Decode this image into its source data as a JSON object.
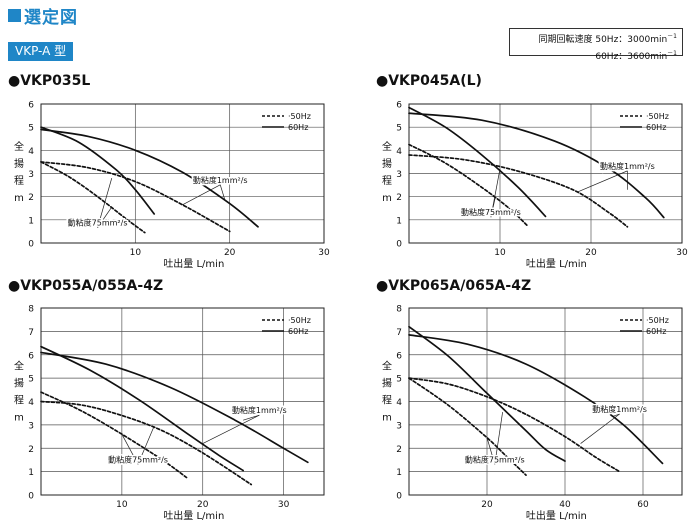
{
  "header": {
    "title": "選定図"
  },
  "section_tag": "VKP-A 型",
  "speed_info": {
    "line1": "同期回転速度 50Hz：3000min",
    "line1_sup": "－1",
    "line2": "60Hz：3600min",
    "line2_sup": "－1"
  },
  "chart_data": [
    {
      "type": "line",
      "title": "●VKP035L",
      "xlabel": "吐出量  L/min",
      "ylabel": [
        "全",
        "揚",
        "程",
        "m"
      ],
      "xlim": [
        0,
        30
      ],
      "ylim": [
        0,
        6
      ],
      "xticks": [
        10,
        20,
        30
      ],
      "yticks": [
        0,
        1,
        2,
        3,
        4,
        5,
        6
      ],
      "grid": true,
      "legend": {
        "position": "top-right",
        "entries": [
          {
            "label": "50Hz",
            "style": "dashed"
          },
          {
            "label": "60Hz",
            "style": "solid"
          }
        ]
      },
      "series": [
        {
          "name": "50Hz",
          "style": "dashed",
          "x": [
            0,
            5,
            10,
            15,
            20
          ],
          "y": [
            3.5,
            3.25,
            2.65,
            1.65,
            0.5
          ]
        },
        {
          "name": "60Hz",
          "style": "solid",
          "x": [
            0,
            5,
            10,
            15,
            20,
            23
          ],
          "y": [
            4.9,
            4.6,
            4.0,
            3.05,
            1.7,
            0.7
          ]
        },
        {
          "name": "50Hz",
          "style": "dashed",
          "x": [
            0,
            3,
            6,
            9,
            11
          ],
          "y": [
            3.5,
            2.85,
            2.0,
            1.05,
            0.45
          ]
        },
        {
          "name": "60Hz",
          "style": "solid",
          "x": [
            0,
            4,
            8,
            10,
            12
          ],
          "y": [
            5.0,
            4.35,
            3.15,
            2.3,
            1.25
          ]
        }
      ],
      "annotations": [
        {
          "text": "動粘度1mm²/s",
          "x": 19,
          "y": 2.6,
          "targets": [
            [
              15,
              1.65
            ],
            [
              19.5,
              1.85
            ]
          ]
        },
        {
          "text": "動粘度75mm²/s",
          "x": 6,
          "y": 0.75,
          "targets": [
            [
              7.5,
              1.55
            ],
            [
              7.5,
              2.8
            ]
          ]
        }
      ]
    },
    {
      "type": "line",
      "title": "●VKP045A(L)",
      "xlabel": "吐出量  L/min",
      "ylabel": [
        "全",
        "揚",
        "程",
        "m"
      ],
      "xlim": [
        0,
        30
      ],
      "ylim": [
        0,
        6
      ],
      "xticks": [
        10,
        20,
        30
      ],
      "yticks": [
        0,
        1,
        2,
        3,
        4,
        5,
        6
      ],
      "grid": true,
      "legend": {
        "position": "top-right",
        "entries": [
          {
            "label": "50Hz",
            "style": "dashed"
          },
          {
            "label": "60Hz",
            "style": "solid"
          }
        ]
      },
      "series": [
        {
          "name": "50Hz",
          "style": "dashed",
          "x": [
            0,
            6,
            12,
            18,
            22,
            24
          ],
          "y": [
            3.8,
            3.6,
            3.1,
            2.3,
            1.3,
            0.7
          ]
        },
        {
          "name": "60Hz",
          "style": "solid",
          "x": [
            0,
            8,
            16,
            22,
            26,
            28
          ],
          "y": [
            5.6,
            5.3,
            4.4,
            3.2,
            1.95,
            1.1
          ]
        },
        {
          "name": "50Hz",
          "style": "dashed",
          "x": [
            0,
            4,
            8,
            11,
            13
          ],
          "y": [
            4.25,
            3.45,
            2.4,
            1.5,
            0.75
          ]
        },
        {
          "name": "60Hz",
          "style": "solid",
          "x": [
            0,
            4,
            8,
            12,
            15
          ],
          "y": [
            5.85,
            5.0,
            3.8,
            2.4,
            1.15
          ]
        }
      ],
      "annotations": [
        {
          "text": "動粘度1mm²/s",
          "x": 24,
          "y": 3.2,
          "targets": [
            [
              18.5,
              2.2
            ],
            [
              24,
              2.3
            ]
          ]
        },
        {
          "text": "動粘度75mm²/s",
          "x": 9,
          "y": 1.2,
          "targets": [
            [
              9.5,
              2.0
            ],
            [
              10,
              3.2
            ]
          ]
        }
      ]
    },
    {
      "type": "line",
      "title": "●VKP055A/055A-4Z",
      "xlabel": "吐出量  L/min",
      "ylabel": [
        "全",
        "揚",
        "程",
        "m"
      ],
      "xlim": [
        0,
        35
      ],
      "ylim": [
        0,
        8
      ],
      "xticks": [
        10,
        20,
        30
      ],
      "yticks": [
        0,
        1,
        2,
        3,
        4,
        5,
        6,
        7,
        8
      ],
      "grid": true,
      "legend": {
        "position": "top-right",
        "entries": [
          {
            "label": "50Hz",
            "style": "dashed"
          },
          {
            "label": "60Hz",
            "style": "solid"
          }
        ]
      },
      "series": [
        {
          "name": "50Hz",
          "style": "dashed",
          "x": [
            0,
            5,
            10,
            15,
            20,
            26
          ],
          "y": [
            4.0,
            3.85,
            3.4,
            2.75,
            1.8,
            0.45
          ]
        },
        {
          "name": "60Hz",
          "style": "solid",
          "x": [
            0,
            8,
            16,
            24,
            30,
            33
          ],
          "y": [
            6.1,
            5.6,
            4.6,
            3.2,
            2.0,
            1.4
          ]
        },
        {
          "name": "50Hz",
          "style": "dashed",
          "x": [
            0,
            5,
            10,
            15,
            18
          ],
          "y": [
            4.4,
            3.6,
            2.6,
            1.5,
            0.75
          ]
        },
        {
          "name": "60Hz",
          "style": "solid",
          "x": [
            0,
            6,
            12,
            18,
            22,
            25
          ],
          "y": [
            6.35,
            5.35,
            4.1,
            2.65,
            1.7,
            1.05
          ]
        }
      ],
      "annotations": [
        {
          "text": "動粘度1mm²/s",
          "x": 27,
          "y": 3.5,
          "targets": [
            [
              20,
              2.2
            ],
            [
              25,
              3.2
            ]
          ]
        },
        {
          "text": "動粘度75mm²/s",
          "x": 12,
          "y": 1.4,
          "targets": [
            [
              10,
              2.6
            ],
            [
              14,
              2.95
            ]
          ]
        }
      ]
    },
    {
      "type": "line",
      "title": "●VKP065A/065A-4Z",
      "xlabel": "吐出量  L/min",
      "ylabel": [
        "全",
        "揚",
        "程",
        "m"
      ],
      "xlim": [
        0,
        70
      ],
      "ylim": [
        0,
        8
      ],
      "xticks": [
        20,
        40,
        60
      ],
      "yticks": [
        0,
        1,
        2,
        3,
        4,
        5,
        6,
        7,
        8
      ],
      "grid": true,
      "legend": {
        "position": "top-right",
        "entries": [
          {
            "label": "50Hz",
            "style": "dashed"
          },
          {
            "label": "60Hz",
            "style": "solid"
          }
        ]
      },
      "series": [
        {
          "name": "50Hz",
          "style": "dashed",
          "x": [
            0,
            10,
            20,
            30,
            40,
            48,
            54
          ],
          "y": [
            5.0,
            4.75,
            4.2,
            3.45,
            2.5,
            1.6,
            1.0
          ]
        },
        {
          "name": "60Hz",
          "style": "solid",
          "x": [
            0,
            15,
            30,
            45,
            55,
            65
          ],
          "y": [
            6.85,
            6.45,
            5.6,
            4.2,
            3.0,
            1.35
          ]
        },
        {
          "name": "50Hz",
          "style": "dashed",
          "x": [
            0,
            10,
            20,
            25,
            30
          ],
          "y": [
            5.0,
            3.85,
            2.45,
            1.65,
            0.85
          ]
        },
        {
          "name": "60Hz",
          "style": "solid",
          "x": [
            0,
            10,
            20,
            30,
            35,
            40
          ],
          "y": [
            7.2,
            5.95,
            4.35,
            2.75,
            1.95,
            1.45
          ]
        }
      ],
      "annotations": [
        {
          "text": "動粘度1mm²/s",
          "x": 54,
          "y": 3.55,
          "targets": [
            [
              44,
              2.2
            ],
            [
              52,
              3.35
            ]
          ]
        },
        {
          "text": "動粘度75mm²/s",
          "x": 22,
          "y": 1.4,
          "targets": [
            [
              20,
              2.45
            ],
            [
              24,
              3.55
            ]
          ]
        }
      ]
    }
  ]
}
